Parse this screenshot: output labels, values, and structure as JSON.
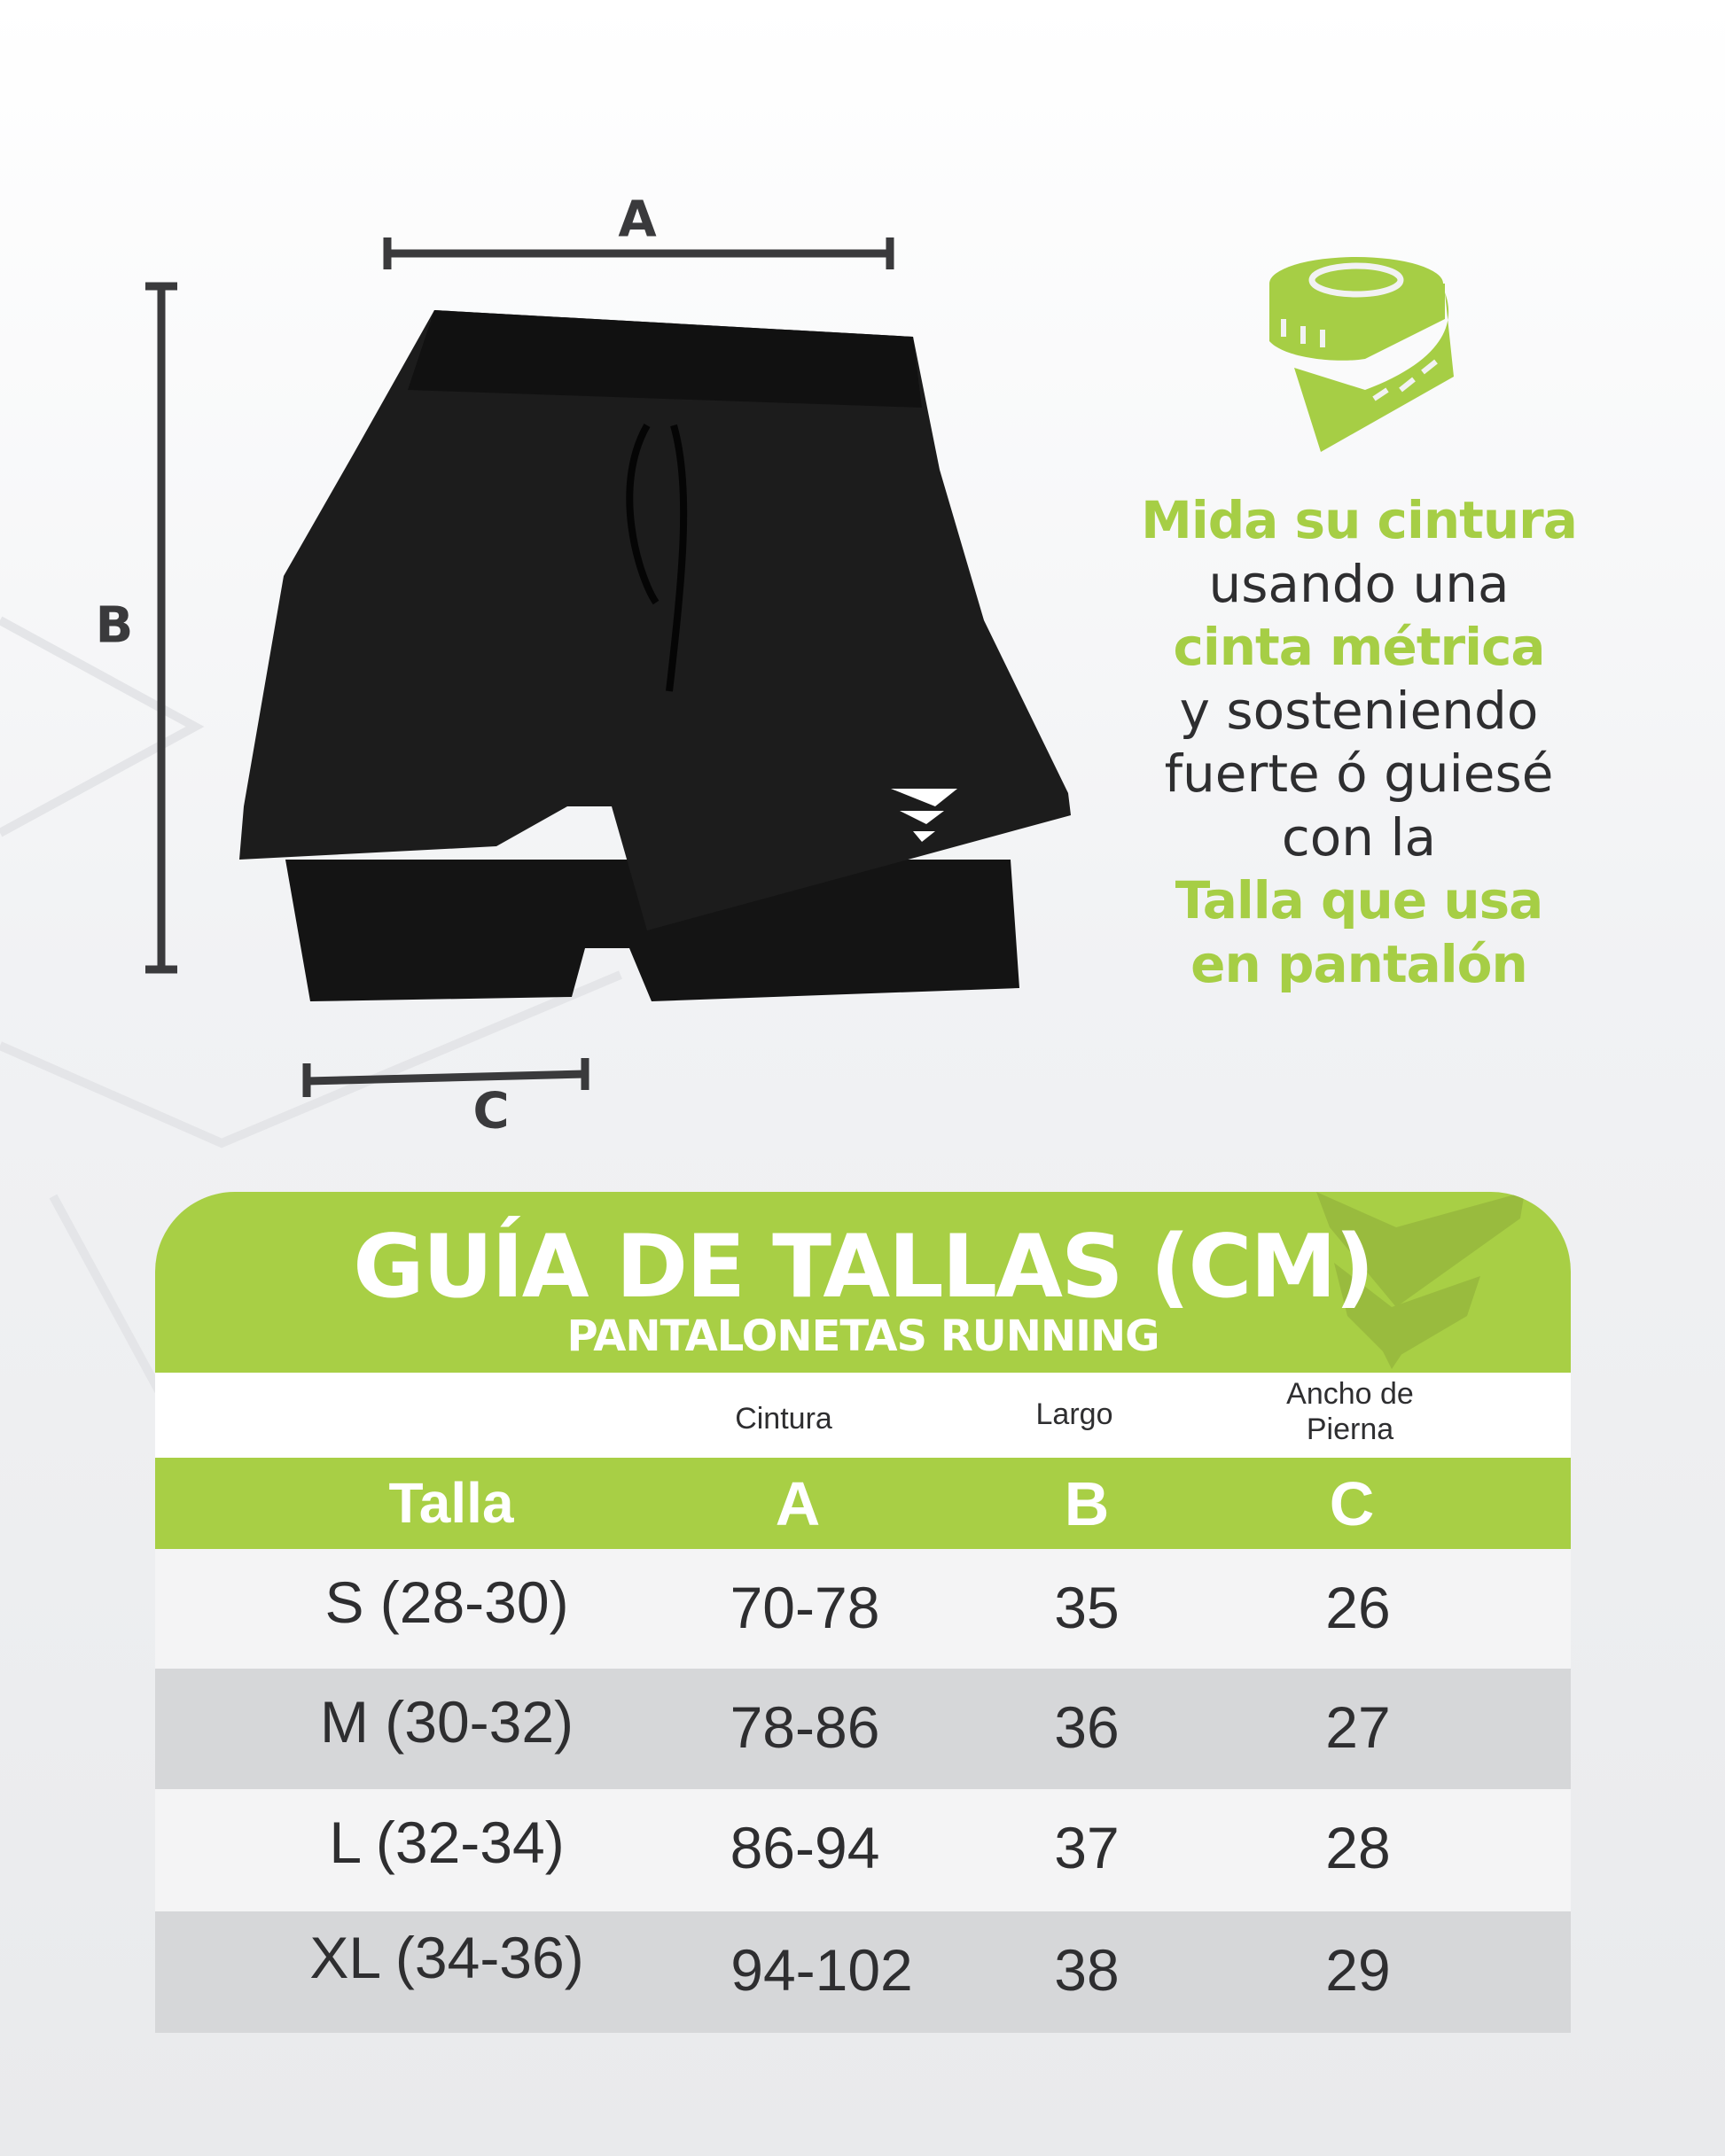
{
  "diagram": {
    "label_a": "A",
    "label_b": "B",
    "label_c": "C"
  },
  "info": {
    "lines": [
      {
        "text": "Mida su cintura",
        "style": "green"
      },
      {
        "text": "usando una",
        "style": "dark"
      },
      {
        "text": "cinta métrica",
        "style": "green"
      },
      {
        "text": "y sosteniendo",
        "style": "dark"
      },
      {
        "text": "fuerte ó guiesé",
        "style": "dark"
      },
      {
        "text": "con la",
        "style": "dark"
      },
      {
        "text": "Talla que usa",
        "style": "green"
      },
      {
        "text": "en pantalón",
        "style": "green"
      }
    ],
    "icon": "measuring-tape-icon"
  },
  "table": {
    "title": "GUÍA DE TALLAS (CM)",
    "subtitle": "PANTALONETAS RUNNING",
    "column_labels": [
      "",
      "Cintura",
      "Largo",
      "Ancho de Pierna"
    ],
    "column_letters": [
      "Talla",
      "A",
      "B",
      "C"
    ],
    "rows": [
      [
        "S (28-30)",
        "70-78",
        "35",
        "26"
      ],
      [
        "M (30-32)",
        "78-86",
        "36",
        "27"
      ],
      [
        "L (32-34)",
        "86-94",
        "37",
        "28"
      ],
      [
        "XL (34-36)",
        "94-102",
        "38",
        "29"
      ]
    ]
  },
  "colors": {
    "accent": "#a8cf45",
    "text": "#2e2e30",
    "row_alt": "#d6d7d9",
    "row": "#f4f4f5"
  }
}
